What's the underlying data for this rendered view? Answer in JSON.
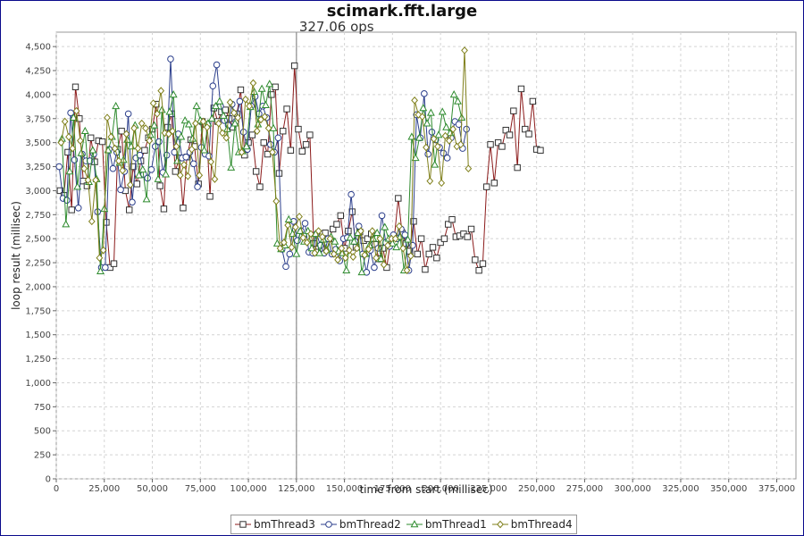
{
  "chart_data": {
    "type": "line",
    "title": "scimark.fft.large",
    "xlabel": "time from start (millisec)",
    "ylabel": "loop result (millisec)",
    "xlim": [
      0,
      385000
    ],
    "ylim": [
      0,
      4650
    ],
    "x_ticks": [
      "0",
      "25,000",
      "50,000",
      "75,000",
      "100,000",
      "125,000",
      "150,000",
      "175,000",
      "200,000",
      "225,000",
      "250,000",
      "275,000",
      "300,000",
      "325,000",
      "350,000",
      "375,000"
    ],
    "y_ticks": [
      "0",
      "250",
      "500",
      "750",
      "1,000",
      "1,250",
      "1,500",
      "1,750",
      "2,000",
      "2,250",
      "2,500",
      "2,750",
      "3,000",
      "3,250",
      "3,500",
      "3,750",
      "4,000",
      "4,250",
      "4,500"
    ],
    "grid": true,
    "legend_position": "bottom",
    "marker_line": {
      "x": 125000,
      "label": "327.06 ops"
    },
    "series": [
      {
        "name": "bmThread3",
        "color": "#8b1a1a",
        "marker": "square",
        "x_start": 2000,
        "x_step": 2000,
        "values": [
          3000,
          2950,
          3400,
          2800,
          4080,
          3750,
          3100,
          3050,
          3550,
          3300,
          3520,
          3510,
          2670,
          2200,
          2240,
          3430,
          3620,
          3000,
          2800,
          3250,
          3070,
          3310,
          3420,
          3550,
          3640,
          3900,
          3050,
          2810,
          3660,
          3800,
          3200,
          3340,
          2820,
          3350,
          3530,
          3460,
          3070,
          3720,
          3690,
          2940,
          3860,
          3720,
          3820,
          3840,
          3750,
          3660,
          3800,
          4050,
          3370,
          3500,
          3580,
          3200,
          3040,
          3500,
          3380,
          4000,
          4080,
          3180,
          3620,
          3850,
          3420,
          4300,
          3640,
          3410,
          3480,
          3580,
          2450,
          2360,
          2400,
          2560,
          2500,
          2600,
          2650,
          2740,
          2400,
          2580,
          2780,
          2410,
          2570,
          2480,
          2500,
          2550,
          2440,
          2290,
          2400,
          2200,
          2480,
          2520,
          2920,
          2560,
          2450,
          2370,
          2680,
          2340,
          2500,
          2180,
          2340,
          2410,
          2300,
          2460,
          2500,
          2650,
          2700,
          2520,
          2530,
          2550,
          2520,
          2600,
          2280,
          2170,
          2240,
          3040,
          3480,
          3080,
          3500,
          3460,
          3630,
          3580,
          3830,
          3240,
          4060,
          3640,
          3590,
          3930,
          3430,
          3420
        ]
      },
      {
        "name": "bmThread2",
        "color": "#2c3f8c",
        "marker": "circle",
        "x_start": 1500,
        "x_step": 2000,
        "values": [
          3250,
          2920,
          2900,
          3810,
          3320,
          2820,
          3380,
          3310,
          3310,
          3380,
          2780,
          2200,
          2200,
          3430,
          3230,
          3400,
          3010,
          3200,
          3800,
          2880,
          3340,
          3370,
          3170,
          3130,
          3220,
          3460,
          3510,
          3190,
          3370,
          4370,
          3400,
          3590,
          3340,
          3350,
          3400,
          3280,
          3040,
          3450,
          3380,
          3360,
          4090,
          4310,
          3880,
          3730,
          3680,
          3900,
          3720,
          3930,
          3610,
          3430,
          3880,
          3980,
          3800,
          3880,
          3760,
          3480,
          3400,
          3550,
          2390,
          2210,
          2340,
          2680,
          2480,
          2580,
          2660,
          2360,
          2350,
          2550,
          2430,
          2350,
          2500,
          2340,
          2390,
          2270,
          2500,
          2510,
          2960,
          2470,
          2630,
          2340,
          2150,
          2380,
          2200,
          2400,
          2740,
          2460,
          2420,
          2540,
          2500,
          2600,
          2540,
          2170,
          2430,
          3790,
          3550,
          4010,
          3380,
          3610,
          3530,
          3450,
          3390,
          3340,
          3550,
          3720,
          3690,
          3440,
          3640
        ]
      },
      {
        "name": "bmThread1",
        "color": "#2e8b2e",
        "marker": "triangle",
        "x_start": 3000,
        "x_step": 2000,
        "values": [
          3540,
          2650,
          3200,
          3760,
          3040,
          3390,
          3620,
          3090,
          3420,
          3120,
          2160,
          2810,
          3420,
          3560,
          3880,
          3290,
          3320,
          3530,
          3460,
          3680,
          3160,
          3220,
          2910,
          3580,
          3680,
          3120,
          3840,
          3170,
          3820,
          4000,
          3310,
          3560,
          3730,
          3690,
          3540,
          3880,
          3730,
          3420,
          3700,
          3750,
          3880,
          3930,
          3780,
          3640,
          3240,
          3700,
          3400,
          3410,
          3460,
          3870,
          4030,
          3690,
          4060,
          3890,
          4110,
          3650,
          2450,
          2390,
          2430,
          2700,
          2550,
          2340,
          2580,
          2470,
          2580,
          2400,
          2550,
          2350,
          2490,
          2380,
          2520,
          2470,
          2370,
          2350,
          2170,
          2510,
          2470,
          2560,
          2150,
          2340,
          2430,
          2500,
          2560,
          2290,
          2620,
          2500,
          2450,
          2410,
          2520,
          2170,
          2490,
          3560,
          3340,
          3550,
          3860,
          3700,
          3810,
          3270,
          3580,
          3820,
          3660,
          3600,
          4000,
          3930,
          3760
        ]
      },
      {
        "name": "bmThread4",
        "color": "#7f7f1a",
        "marker": "diamond",
        "x_start": 2500,
        "x_step": 2000,
        "values": [
          3500,
          3720,
          3560,
          3440,
          3830,
          3520,
          3230,
          3110,
          2680,
          3110,
          2300,
          2380,
          3760,
          3560,
          3440,
          3310,
          3210,
          3590,
          3060,
          3650,
          3440,
          3700,
          3650,
          3520,
          3910,
          3800,
          4040,
          3600,
          3590,
          3620,
          3460,
          3160,
          3270,
          3150,
          3430,
          3700,
          3160,
          3720,
          3660,
          3300,
          3120,
          3700,
          3600,
          3550,
          3920,
          3810,
          3760,
          3400,
          3950,
          3880,
          4120,
          3620,
          3740,
          3770,
          3650,
          3400,
          2890,
          2400,
          2460,
          2640,
          2410,
          2620,
          2730,
          2510,
          2460,
          2550,
          2350,
          2580,
          2520,
          2370,
          2500,
          2340,
          2280,
          2400,
          2300,
          2380,
          2310,
          2400,
          2580,
          2330,
          2390,
          2580,
          2300,
          2500,
          2230,
          2430,
          2500,
          2500,
          2630,
          2400,
          2170,
          2320,
          3940,
          3790,
          3770,
          3450,
          3100,
          3540,
          3460,
          3080,
          3570,
          3520,
          3640,
          3460,
          3480,
          4460,
          3230
        ]
      }
    ]
  }
}
